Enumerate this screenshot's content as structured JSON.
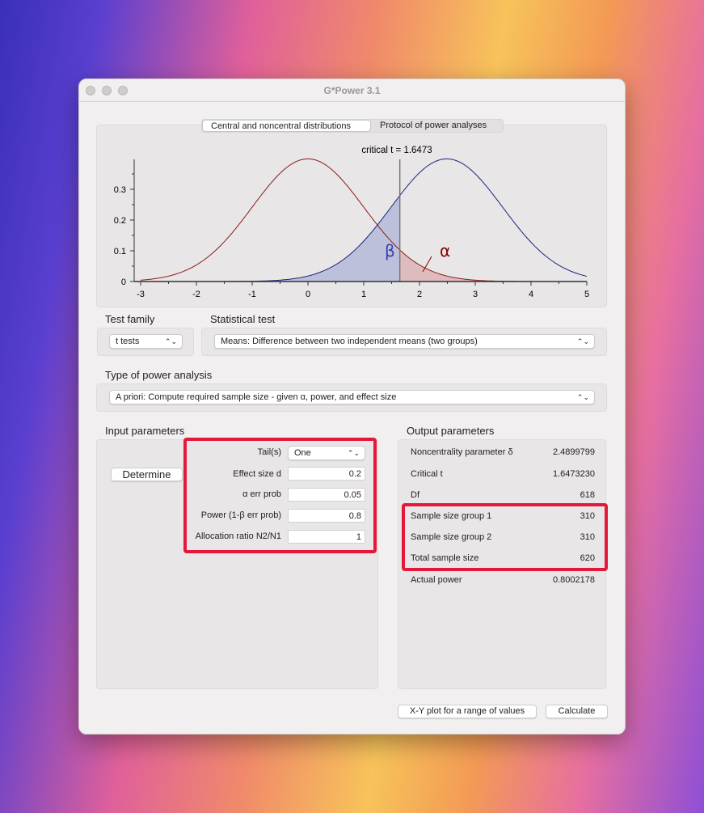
{
  "window": {
    "title": "G*Power 3.1"
  },
  "tabs": [
    {
      "label": "Central and noncentral distributions",
      "active": true
    },
    {
      "label": "Protocol of power analyses",
      "active": false
    }
  ],
  "chart_data": {
    "type": "line",
    "title": "critical t = 1.6473",
    "critical_t": 1.6473,
    "xlim": [
      -3,
      5
    ],
    "ylim": [
      0,
      0.4
    ],
    "x_ticks": [
      "-3",
      "-2",
      "-1",
      "0",
      "1",
      "2",
      "3",
      "4",
      "5"
    ],
    "y_ticks": [
      "0",
      "0.1",
      "0.2",
      "0.3"
    ],
    "series": [
      {
        "distribution": "central t",
        "df": 618,
        "noncentrality": 0,
        "color": "#8b1a1a"
      },
      {
        "distribution": "noncentral t",
        "df": 618,
        "noncentrality": 2.4899799,
        "color": "#1a237e"
      }
    ],
    "annotations": [
      {
        "text": "β",
        "color": "#3b3fb0"
      },
      {
        "text": "α",
        "color": "#8b0000"
      }
    ],
    "fill_colors": {
      "beta": "#b4b8d8",
      "alpha": "#dcb4b6"
    }
  },
  "test_family": {
    "label": "Test family",
    "value": "t tests"
  },
  "statistical_test": {
    "label": "Statistical test",
    "value": "Means: Difference between two independent means (two groups)"
  },
  "power_analysis": {
    "label": "Type of power analysis",
    "value": "A priori: Compute required sample size - given α, power, and effect size"
  },
  "input": {
    "label": "Input parameters",
    "determine": "Determine",
    "rows": [
      {
        "label": "Tail(s)",
        "value": "One"
      },
      {
        "label": "Effect size d",
        "value": "0.2"
      },
      {
        "label": "α err prob",
        "value": "0.05"
      },
      {
        "label": "Power (1-β err prob)",
        "value": "0.8"
      },
      {
        "label": "Allocation ratio N2/N1",
        "value": "1"
      }
    ]
  },
  "output": {
    "label": "Output parameters",
    "rows": [
      {
        "label": "Noncentrality parameter δ",
        "value": "2.4899799"
      },
      {
        "label": "Critical t",
        "value": "1.6473230"
      },
      {
        "label": "Df",
        "value": "618"
      },
      {
        "label": "Sample size group 1",
        "value": "310"
      },
      {
        "label": "Sample size group 2",
        "value": "310"
      },
      {
        "label": "Total sample size",
        "value": "620"
      },
      {
        "label": "Actual power",
        "value": "0.8002178"
      }
    ]
  },
  "buttons": {
    "xy_plot": "X-Y plot for a range of values",
    "calculate": "Calculate"
  },
  "highlight_color": "#e5173a"
}
